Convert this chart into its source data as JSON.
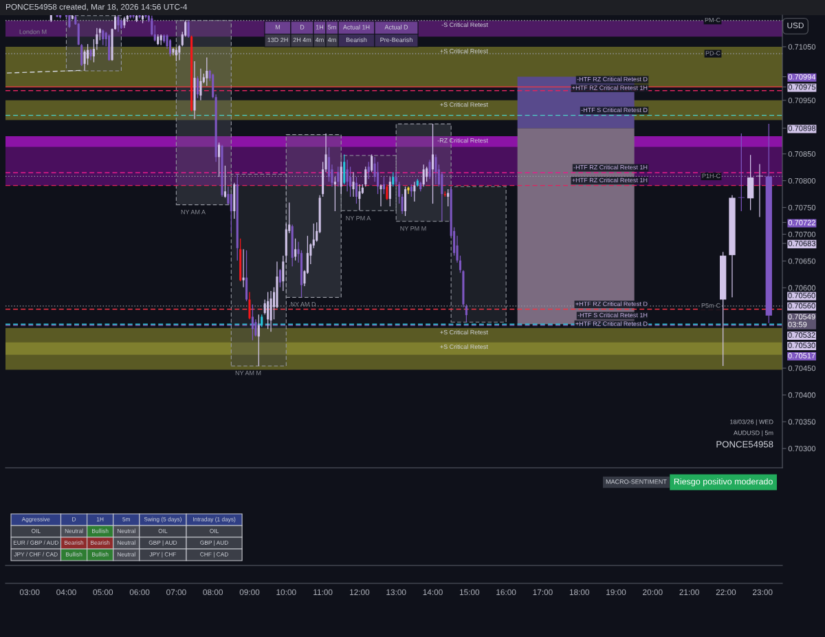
{
  "chart_data": {
    "type": "candlestick",
    "title": "PONCE54958 created, Mar 18, 2026 14:56 UTC-4",
    "y2label": "USD",
    "xlim": [
      2.34,
      23.54
    ],
    "y2lim": [
      0.70264,
      0.71109
    ],
    "xticks": [
      {
        "value": 3,
        "label": "03:00"
      },
      {
        "value": 4,
        "label": "04:00"
      },
      {
        "value": 5,
        "label": "05:00"
      },
      {
        "value": 6,
        "label": "06:00"
      },
      {
        "value": 7,
        "label": "07:00"
      },
      {
        "value": 8,
        "label": "08:00"
      },
      {
        "value": 9,
        "label": "09:00"
      },
      {
        "value": 10,
        "label": "10:00"
      },
      {
        "value": 11,
        "label": "11:00"
      },
      {
        "value": 12,
        "label": "12:00"
      },
      {
        "value": 13,
        "label": "13:00"
      },
      {
        "value": 14,
        "label": "14:00"
      },
      {
        "value": 15,
        "label": "15:00"
      },
      {
        "value": 16,
        "label": "16:00"
      },
      {
        "value": 17,
        "label": "17:00"
      },
      {
        "value": 18,
        "label": "18:00"
      },
      {
        "value": 19,
        "label": "19:00"
      },
      {
        "value": 20,
        "label": "20:00"
      },
      {
        "value": 21,
        "label": "21:00"
      },
      {
        "value": 22,
        "label": "22:00"
      },
      {
        "value": 23,
        "label": "23:00"
      }
    ],
    "y2ticks": [
      {
        "value": 0.703,
        "label": "0.70300"
      },
      {
        "value": 0.7035,
        "label": "0.70350"
      },
      {
        "value": 0.704,
        "label": "0.70400"
      },
      {
        "value": 0.7045,
        "label": "0.70450"
      },
      {
        "value": 0.706,
        "label": "0.70600"
      },
      {
        "value": 0.7065,
        "label": "0.70650"
      },
      {
        "value": 0.707,
        "label": "0.70700"
      },
      {
        "value": 0.7075,
        "label": "0.70750"
      },
      {
        "value": 0.708,
        "label": "0.70800"
      },
      {
        "value": 0.7085,
        "label": "0.70850"
      },
      {
        "value": 0.7095,
        "label": "0.70950"
      },
      {
        "value": 0.7105,
        "label": "0.71050"
      },
      {
        "value": 0.70994,
        "label": "0.70994"
      },
      {
        "value": 0.70975,
        "label": "0.70975"
      },
      {
        "value": 0.70898,
        "label": "0.70898"
      },
      {
        "value": 0.70722,
        "label": "0.70722"
      },
      {
        "value": 0.70683,
        "label": "0.70683"
      }
    ],
    "bands": [
      {
        "axis": "y2",
        "from": 0.70975,
        "to": 0.7105,
        "label": "+S Critical Retest",
        "color": "#5a5a24"
      },
      {
        "axis": "y2",
        "from": 0.71069,
        "to": 0.71099,
        "label": "-S Critical Retest",
        "color": "#4d1a63"
      },
      {
        "axis": "y2",
        "from": 0.70913,
        "to": 0.7095,
        "label": "+S Critical Retest",
        "color": "#5a5a24"
      },
      {
        "axis": "y2",
        "from": 0.70791,
        "to": 0.70883,
        "label": "-RZ Critical Retest",
        "color": "#4a0f5e"
      },
      {
        "axis": "y2",
        "from": 0.70863,
        "to": 0.70883,
        "color": "#8c13a6"
      },
      {
        "axis": "y2",
        "from": 0.70447,
        "to": 0.70525,
        "label": "+S Critical Retest",
        "color": "#5a5a24"
      },
      {
        "axis": "y2",
        "from": 0.70475,
        "to": 0.70498,
        "label": "+S Critical Retest",
        "color": "#7f7f2e"
      }
    ],
    "series": [
      {
        "type": "bar",
        "axis": "y2",
        "x": [
          4.75,
          7.75,
          9.25,
          10.75,
          12.25,
          13.75,
          15.25
        ],
        "base": [
          0.71005,
          0.70755,
          0.70454,
          0.70582,
          0.70744,
          0.70724,
          0.70536
        ],
        "values": [
          0.00103,
          0.00344,
          0.00358,
          0.00304,
          0.00103,
          0.00182,
          0.00253
        ],
        "colors": [
          "#22242d",
          "#292b35",
          "#1e2029",
          "#292b35",
          "#1e2029",
          "#292b35",
          "#1e2029"
        ],
        "line_style": "dashed"
      },
      {
        "type": "bar",
        "axis": "y2",
        "x": [
          17.905
        ],
        "base": [
          0.70532
        ],
        "values": [
          0.00366
        ],
        "color": "#7b6b80"
      },
      {
        "type": "bar",
        "axis": "y2",
        "x": [
          17.905
        ],
        "base": [
          0.70898
        ],
        "values": [
          0.00096
        ],
        "color": "#584a8c"
      },
      {
        "type": "line",
        "axis": "y2",
        "x": [
          2.38,
          4.47
        ],
        "values": [
          0.71001,
          0.71006
        ],
        "color": "#d1d4dc",
        "line_style": "dashed"
      },
      {
        "axis": "y2",
        "x": [
          3.5833,
          3.75,
          3.8333,
          4.0,
          4.0833,
          4.1667,
          4.25,
          4.3333,
          4.4167,
          4.5,
          4.5833,
          4.6667,
          4.75,
          4.8333,
          4.9167,
          5.0,
          5.0833,
          5.1667,
          5.25,
          5.3333,
          5.4167,
          5.5,
          5.5833,
          5.6667,
          5.75,
          5.8333,
          5.9167,
          6.0,
          6.0833,
          6.1667,
          6.25,
          6.3333,
          6.4167,
          6.5,
          6.5833,
          6.6667,
          6.75,
          6.8333,
          6.9167,
          7.0,
          7.0833,
          7.1667,
          7.25,
          7.3333,
          7.4167,
          7.5,
          7.5833,
          7.6667,
          7.75,
          7.8333,
          7.9167,
          8.0,
          8.0833,
          8.1667,
          8.25,
          8.3333,
          8.4167,
          8.5,
          8.5833,
          8.6667,
          8.75,
          8.8333,
          8.9167,
          9.0,
          9.0833,
          9.1667,
          9.25,
          9.3333,
          9.4167,
          9.5,
          9.5833,
          9.6667,
          9.75,
          9.8333,
          9.9167,
          10.0,
          10.0833,
          10.1667,
          10.25,
          10.3333,
          10.4167,
          10.5,
          10.5833,
          10.6667,
          10.75,
          10.8333,
          10.9167,
          11.0,
          11.0833,
          11.1667,
          11.25,
          11.3333,
          11.4167,
          11.5,
          11.5833,
          11.6667,
          11.75,
          11.8333,
          11.9167,
          12.0,
          12.0833,
          12.1667,
          12.25,
          12.3333,
          12.4167,
          12.5,
          12.5833,
          12.6667,
          12.75,
          12.8333,
          12.9167,
          13.0,
          13.0833,
          13.1667,
          13.25,
          13.3333,
          13.4167,
          13.5,
          13.5833,
          13.6667,
          13.75,
          13.8333,
          13.9167,
          14.0,
          14.0833,
          14.1667,
          14.25,
          14.3333,
          14.4167,
          14.5,
          14.5833,
          14.6667,
          14.75,
          14.8333,
          14.9167
        ],
        "ohlc": [
          [
            0.71099,
            0.71109,
            0.71096,
            0.71109
          ],
          [
            0.71109,
            0.71109,
            0.71105,
            0.71106
          ],
          [
            0.71109,
            0.71109,
            0.71103,
            0.71105
          ],
          [
            0.71109,
            0.71109,
            0.71105,
            0.71106
          ],
          [
            0.71109,
            0.71109,
            0.71085,
            0.71087
          ],
          [
            0.71102,
            0.71109,
            0.71101,
            0.71108
          ],
          [
            0.71106,
            0.71109,
            0.71091,
            0.71092
          ],
          [
            0.71093,
            0.71094,
            0.71053,
            0.71054
          ],
          [
            0.71053,
            0.71055,
            0.71014,
            0.71016
          ],
          [
            0.71018,
            0.71044,
            0.71005,
            0.71041
          ],
          [
            0.71028,
            0.71055,
            0.71016,
            0.71044
          ],
          [
            0.71044,
            0.71046,
            0.71025,
            0.71032
          ],
          [
            0.71032,
            0.71064,
            0.71021,
            0.71046
          ],
          [
            0.71055,
            0.71085,
            0.71044,
            0.71073
          ],
          [
            0.71076,
            0.71085,
            0.71062,
            0.71083
          ],
          [
            0.7108,
            0.71082,
            0.71053,
            0.71064
          ],
          [
            0.71076,
            0.71078,
            0.71051,
            0.71064
          ],
          [
            0.71071,
            0.71073,
            0.71024,
            0.71025
          ],
          [
            0.71025,
            0.71084,
            0.71024,
            0.71083
          ],
          [
            0.71083,
            0.71109,
            0.71082,
            0.71106
          ],
          [
            0.71106,
            0.71109,
            0.71078,
            0.7109
          ],
          [
            0.71099,
            0.71101,
            0.71083,
            0.71085
          ],
          [
            0.7109,
            0.71106,
            0.71085,
            0.71103
          ],
          [
            0.71101,
            0.71109,
            0.71096,
            0.71108
          ],
          [
            0.71109,
            0.71109,
            0.71103,
            0.71105
          ],
          [
            0.71109,
            0.71109,
            0.71103,
            0.71106
          ],
          [
            0.71099,
            0.71109,
            0.71096,
            0.71108
          ],
          [
            0.71109,
            0.71109,
            0.71103,
            0.71105
          ],
          [
            0.71101,
            0.71109,
            0.71094,
            0.71108
          ],
          [
            0.71109,
            0.71109,
            0.71103,
            0.71106
          ],
          [
            0.71108,
            0.71109,
            0.71096,
            0.71099
          ],
          [
            0.71103,
            0.71108,
            0.71071,
            0.71073
          ],
          [
            0.71073,
            0.7109,
            0.7106,
            0.71062
          ],
          [
            0.71055,
            0.71073,
            0.71053,
            0.71069
          ],
          [
            0.71062,
            0.71073,
            0.71053,
            0.71071
          ],
          [
            0.71071,
            0.71073,
            0.71057,
            0.7106
          ],
          [
            0.71071,
            0.71073,
            0.71046,
            0.71051
          ],
          [
            0.71062,
            0.71064,
            0.71032,
            0.71037
          ],
          [
            0.71039,
            0.71048,
            0.71034,
            0.71046
          ],
          [
            0.71034,
            0.71048,
            0.71023,
            0.71044
          ],
          [
            0.71039,
            0.71053,
            0.71025,
            0.71051
          ],
          [
            0.71053,
            0.71078,
            0.71051,
            0.71073
          ],
          [
            0.71071,
            0.71099,
            0.71069,
            0.71096
          ],
          [
            0.71096,
            0.71099,
            0.71067,
            0.71069
          ],
          [
            0.71069,
            0.71071,
            0.70929,
            0.70931
          ],
          [
            0.70931,
            0.71023,
            0.70915,
            0.70992
          ],
          [
            0.70991,
            0.70995,
            0.70954,
            0.70961
          ],
          [
            0.70959,
            0.71009,
            0.7095,
            0.70986
          ],
          [
            0.70984,
            0.71,
            0.70982,
            0.70993
          ],
          [
            0.70991,
            0.7103,
            0.70977,
            0.71005
          ],
          [
            0.71005,
            0.71007,
            0.70986,
            0.70991
          ],
          [
            0.70998,
            0.71,
            0.70954,
            0.70956
          ],
          [
            0.70956,
            0.70961,
            0.70835,
            0.70844
          ],
          [
            0.70844,
            0.70871,
            0.70807,
            0.70867
          ],
          [
            0.70865,
            0.70867,
            0.7077,
            0.70773
          ],
          [
            0.7077,
            0.70828,
            0.70768,
            0.7078
          ],
          [
            0.70775,
            0.70789,
            0.70756,
            0.70757
          ],
          [
            0.70775,
            0.70775,
            0.70702,
            0.70743
          ],
          [
            0.70743,
            0.70796,
            0.70729,
            0.70793
          ],
          [
            0.70793,
            0.70812,
            0.70651,
            0.70674
          ],
          [
            0.70672,
            0.70692,
            0.70612,
            0.70614
          ],
          [
            0.70614,
            0.70672,
            0.70601,
            0.70619
          ],
          [
            0.70619,
            0.7067,
            0.70575,
            0.70578
          ],
          [
            0.70578,
            0.70592,
            0.70541,
            0.70543
          ],
          [
            0.70546,
            0.70569,
            0.70502,
            0.70523
          ],
          [
            0.70536,
            0.70541,
            0.70509,
            0.70511
          ],
          [
            0.70509,
            0.7055,
            0.70454,
            0.7053
          ],
          [
            0.7053,
            0.7055,
            0.70527,
            0.70546
          ],
          [
            0.70553,
            0.70578,
            0.7055,
            0.70571
          ],
          [
            0.70541,
            0.70592,
            0.70523,
            0.70575
          ],
          [
            0.70539,
            0.70594,
            0.70518,
            0.7058
          ],
          [
            0.70564,
            0.70601,
            0.70541,
            0.70592
          ],
          [
            0.70564,
            0.70649,
            0.70562,
            0.70621
          ],
          [
            0.70633,
            0.70635,
            0.70601,
            0.7061
          ],
          [
            0.70612,
            0.7066,
            0.70594,
            0.70649
          ],
          [
            0.7066,
            0.7072,
            0.70647,
            0.70709
          ],
          [
            0.70706,
            0.70759,
            0.70702,
            0.70718
          ],
          [
            0.70715,
            0.70718,
            0.7064,
            0.70656
          ],
          [
            0.70658,
            0.70692,
            0.70651,
            0.70672
          ],
          [
            0.70672,
            0.70686,
            0.70647,
            0.70663
          ],
          [
            0.70665,
            0.7067,
            0.70582,
            0.70605
          ],
          [
            0.70608,
            0.70633,
            0.70603,
            0.70631
          ],
          [
            0.70628,
            0.70697,
            0.70626,
            0.70665
          ],
          [
            0.7066,
            0.70683,
            0.70644,
            0.70681
          ],
          [
            0.70679,
            0.7072,
            0.70674,
            0.7069
          ],
          [
            0.70688,
            0.70722,
            0.70686,
            0.70706
          ],
          [
            0.70704,
            0.70773,
            0.70702,
            0.70768
          ],
          [
            0.70775,
            0.70835,
            0.7077,
            0.70821
          ],
          [
            0.70821,
            0.70888,
            0.70816,
            0.70849
          ],
          [
            0.70844,
            0.70862,
            0.70798,
            0.70807
          ],
          [
            0.70821,
            0.7083,
            0.70789,
            0.70796
          ],
          [
            0.70793,
            0.70807,
            0.70743,
            0.70798
          ],
          [
            0.70816,
            0.70826,
            0.70789,
            0.70798
          ],
          [
            0.70789,
            0.70835,
            0.70775,
            0.70826
          ],
          [
            0.70796,
            0.70849,
            0.70793,
            0.70835
          ],
          [
            0.70821,
            0.70839,
            0.7078,
            0.70798
          ],
          [
            0.70807,
            0.70826,
            0.7077,
            0.70789
          ],
          [
            0.70784,
            0.70816,
            0.7077,
            0.70798
          ],
          [
            0.70796,
            0.70807,
            0.70757,
            0.7077
          ],
          [
            0.70766,
            0.70793,
            0.70745,
            0.7078
          ],
          [
            0.70777,
            0.70793,
            0.70775,
            0.70787
          ],
          [
            0.70793,
            0.70826,
            0.70789,
            0.70821
          ],
          [
            0.70826,
            0.70835,
            0.70803,
            0.70816
          ],
          [
            0.70819,
            0.70849,
            0.70816,
            0.70846
          ],
          [
            0.70832,
            0.70844,
            0.70798,
            0.70807
          ],
          [
            0.70816,
            0.70835,
            0.70775,
            0.70789
          ],
          [
            0.70784,
            0.70793,
            0.70752,
            0.70791
          ],
          [
            0.70793,
            0.70807,
            0.70775,
            0.70784
          ],
          [
            0.70789,
            0.70793,
            0.70764,
            0.70766
          ],
          [
            0.70766,
            0.70807,
            0.70752,
            0.70798
          ],
          [
            0.70793,
            0.70816,
            0.70789,
            0.70807
          ],
          [
            0.70807,
            0.70816,
            0.70793,
            0.70798
          ],
          [
            0.70793,
            0.70798,
            0.70757,
            0.7077
          ],
          [
            0.7077,
            0.70775,
            0.70738,
            0.70743
          ],
          [
            0.70743,
            0.70789,
            0.70734,
            0.70784
          ],
          [
            0.70782,
            0.70789,
            0.70775,
            0.70787
          ],
          [
            0.70789,
            0.70793,
            0.7077,
            0.7078
          ],
          [
            0.7078,
            0.70798,
            0.70761,
            0.70791
          ],
          [
            0.70791,
            0.70803,
            0.70789,
            0.708
          ],
          [
            0.70796,
            0.70798,
            0.7078,
            0.70784
          ],
          [
            0.70793,
            0.7083,
            0.70789,
            0.70821
          ],
          [
            0.70807,
            0.70826,
            0.70798,
            0.70823
          ],
          [
            0.70835,
            0.70839,
            0.70803,
            0.70807
          ],
          [
            0.70821,
            0.70906,
            0.70757,
            0.70849
          ],
          [
            0.70844,
            0.70849,
            0.70793,
            0.70816
          ],
          [
            0.70821,
            0.7083,
            0.70789,
            0.70793
          ],
          [
            0.70812,
            0.70816,
            0.70725,
            0.70775
          ],
          [
            0.70775,
            0.7078,
            0.7077,
            0.70773
          ],
          [
            0.7077,
            0.70784,
            0.70752,
            0.70777
          ],
          [
            0.70784,
            0.70789,
            0.70695,
            0.70697
          ],
          [
            0.70706,
            0.70713,
            0.7066,
            0.70665
          ],
          [
            0.70679,
            0.70697,
            0.70647,
            0.70651
          ],
          [
            0.70651,
            0.7066,
            0.70628,
            0.70633
          ],
          [
            0.70631,
            0.70633,
            0.70564,
            0.70569
          ],
          [
            0.70566,
            0.70569,
            0.70536,
            0.70549
          ]
        ],
        "colors": [
          "#d1c4e9",
          "#7e57c2",
          "#7e57c2",
          "#7e57c2",
          "#7e57c2",
          "#d1c4e9",
          "#7e57c2",
          "#7e57c2",
          "#7e57c2",
          "#d1c4e9",
          "#d1c4e9",
          "#7e57c2",
          "#d1c4e9",
          "#d1c4e9",
          "#d1c4e9",
          "#7e57c2",
          "#7e57c2",
          "#7e57c2",
          "#d1c4e9",
          "#d1c4e9",
          "#7e57c2",
          "#7e57c2",
          "#d1c4e9",
          "#d1c4e9",
          "#7e57c2",
          "#7e57c2",
          "#d1c4e9",
          "#7e57c2",
          "#d1c4e9",
          "#7e57c2",
          "#7e57c2",
          "#7e57c2",
          "#7e57c2",
          "#d1c4e9",
          "#d1c4e9",
          "#7e57c2",
          "#7e57c2",
          "#7e57c2",
          "#d1c4e9",
          "#d1c4e9",
          "#d1c4e9",
          "#d1c4e9",
          "#d1c4e9",
          "#7e57c2",
          "#f7171b",
          "#d1c4e9",
          "#7e57c2",
          "#d1c4e9",
          "#d1c4e9",
          "#d1c4e9",
          "#7e57c2",
          "#7e57c2",
          "#7e57c2",
          "#d1c4e9",
          "#7e57c2",
          "#d1c4e9",
          "#7e57c2",
          "#7e57c2",
          "#d1c4e9",
          "#7e57c2",
          "#f7171b",
          "#d1c4e9",
          "#7e57c2",
          "#f7171b",
          "#7e57c2",
          "#7e57c2",
          "#d1c4e9",
          "#26c6da",
          "#d1c4e9",
          "#d1c4e9",
          "#d1c4e9",
          "#d1c4e9",
          "#d1c4e9",
          "#7e57c2",
          "#d1c4e9",
          "#d1c4e9",
          "#d1c4e9",
          "#7e57c2",
          "#d1c4e9",
          "#7e57c2",
          "#7e57c2",
          "#d1c4e9",
          "#d1c4e9",
          "#d1c4e9",
          "#d1c4e9",
          "#d1c4e9",
          "#d1c4e9",
          "#d1c4e9",
          "#d1c4e9",
          "#7e57c2",
          "#7e57c2",
          "#d1c4e9",
          "#7e57c2",
          "#d1c4e9",
          "#26c6da",
          "#7e57c2",
          "#7e57c2",
          "#d1c4e9",
          "#7e57c2",
          "#d1c4e9",
          "#d1c4e9",
          "#d1c4e9",
          "#7e57c2",
          "#d1c4e9",
          "#7e57c2",
          "#7e57c2",
          "#d1c4e9",
          "#7e57c2",
          "#f7171b",
          "#d1c4e9",
          "#26c6da",
          "#7e57c2",
          "#7e57c2",
          "#7e57c2",
          "#d1c4e9",
          "#fdd835",
          "#7e57c2",
          "#d1c4e9",
          "#26c6da",
          "#7e57c2",
          "#d1c4e9",
          "#d1c4e9",
          "#7e57c2",
          "#d1c4e9",
          "#7e57c2",
          "#7e57c2",
          "#7e57c2",
          "#f7171b",
          "#d1c4e9",
          "#7e57c2",
          "#7e57c2",
          "#7e57c2",
          "#7e57c2",
          "#7e57c2",
          "#7e57c2"
        ]
      },
      {
        "axis": "y2",
        "x": [
          21.92,
          22.17,
          22.42,
          22.67,
          22.92,
          23.17
        ],
        "ohlc": [
          [
            0.70578,
            0.70667,
            0.70454,
            0.7066
          ],
          [
            0.70661,
            0.70773,
            0.70582,
            0.70768
          ],
          [
            0.70768,
            0.70888,
            0.70743,
            0.70768
          ],
          [
            0.70767,
            0.70848,
            0.70745,
            0.70806
          ],
          [
            0.70808,
            0.70831,
            0.70732,
            0.70808
          ],
          [
            0.70808,
            0.70906,
            0.70534,
            0.70548
          ]
        ],
        "colors": [
          "#d1c4e9",
          "#d1c4e9",
          "#7e57c2",
          "#d1c4e9",
          "#d1c4e9",
          "#7e57c2"
        ]
      }
    ],
    "ref_lines": [
      {
        "axis": "y2",
        "value": 0.71099,
        "label": "PM-C",
        "color": "#9598a1",
        "line_style": "dotted"
      },
      {
        "axis": "y2",
        "value": 0.71037,
        "label": "PD-C",
        "color": "#9598a1",
        "line_style": "dotted"
      },
      {
        "axis": "y2",
        "value": 0.70975,
        "label": "-HTF RZ Critical Retest D",
        "color": "#f23645",
        "line_style": "solid"
      },
      {
        "axis": "y2",
        "value": 0.70968,
        "label": "+HTF RZ Critical Retest 1H",
        "color": "#e0245e",
        "line_style": "dashed"
      },
      {
        "axis": "y2",
        "value": 0.70922,
        "label": "-HTF S Critical Retest D",
        "color": "#4dd0c8",
        "line_style": "dashed"
      },
      {
        "axis": "y2",
        "value": 0.70815,
        "label": "-HTF RZ Critical Retest 1H",
        "color": "#e91e8c",
        "line_style": "dashed"
      },
      {
        "axis": "y2",
        "value": 0.70808,
        "label": "P1H-C",
        "color": "#9598a1",
        "line_style": "dotted"
      },
      {
        "axis": "y2",
        "value": 0.70791,
        "label": "+HTF RZ Critical Retest 1H",
        "color": "#e0245e",
        "line_style": "dashed"
      },
      {
        "axis": "y2",
        "value": 0.70566,
        "label": "P5m-C",
        "color": "#9598a1",
        "line_style": "dotted"
      },
      {
        "axis": "y2",
        "value": 0.7056,
        "label": "+HTF RZ Critical Retest D",
        "color": "#f23645",
        "line_style": "dashed"
      },
      {
        "axis": "y2",
        "value": 0.70532,
        "label": "-HTF S Critical Retest 1H",
        "color": "#26c6da",
        "line_style": "dashed"
      },
      {
        "axis": "y2",
        "value": 0.7053,
        "label": "+HTF RZ Critical Retest D",
        "color": "#9575cd",
        "line_style": "dashed"
      }
    ],
    "annotations": [
      "London M",
      "NY AM A",
      "NY AM M",
      "NY AM D",
      "NY PM A",
      "NY PM M",
      "18/03/26 | WED",
      "AUDUSD | 5m",
      "PONCE54958",
      "0.70560",
      "0.70560",
      "0.70549\n03:59",
      "0.70532",
      "0.70530",
      "0.70517",
      "M",
      "D",
      "1H",
      "5m",
      "Actual 1H",
      "Actual D",
      "13D 2H",
      "2H 4m",
      "4m",
      "4m",
      "Bearish",
      "Pre-Bearish",
      "Aggressive",
      "D",
      "1H",
      "5m",
      "Swing (5 days)",
      "Intraday (1 days)",
      "OIL",
      "Neutral",
      "Bullish",
      "Neutral",
      "OIL",
      "OIL",
      "EUR / GBP / AUD",
      "Bearish",
      "Bearish",
      "Neutral",
      "GBP | AUD",
      "GBP | AUD",
      "JPY / CHF / CAD",
      "Bullish",
      "Bullish",
      "Neutral",
      "JPY | CHF",
      "CHF | CAD",
      "MACRO-SENTIMENT",
      "Riesgo positivo moderado"
    ]
  }
}
